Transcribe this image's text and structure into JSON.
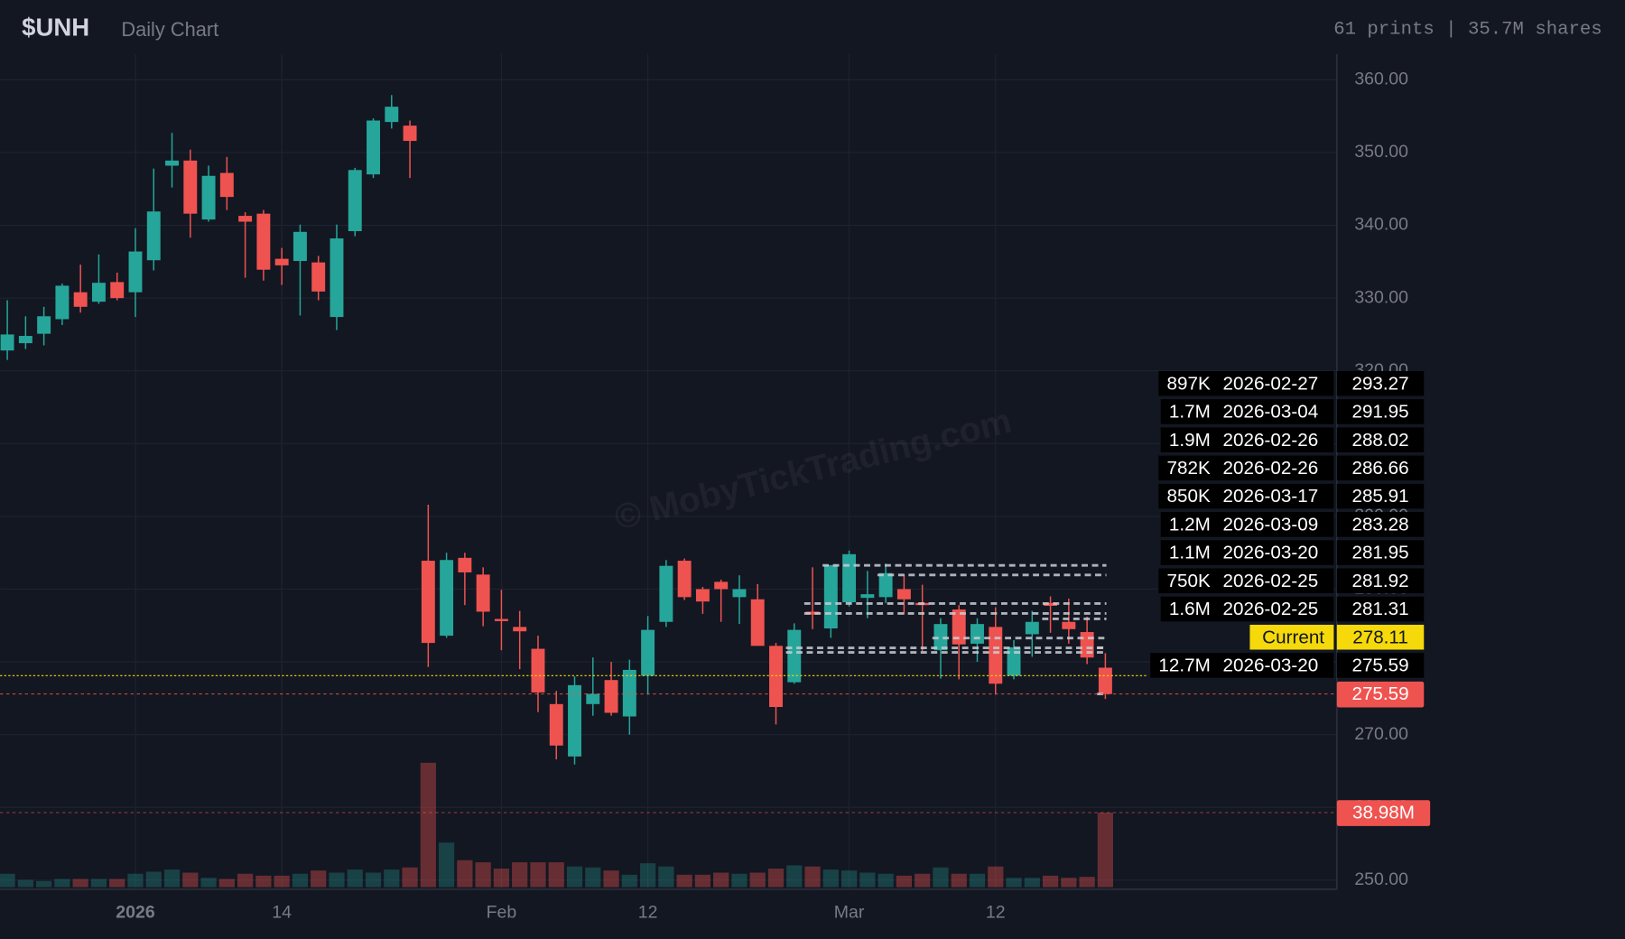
{
  "chart_data": {
    "type": "candlestick",
    "title": "$UNH",
    "subtitle": "Daily Chart",
    "summary": "61 prints | 35.7M shares",
    "watermark": "© MobyTickTrading.com",
    "categories": [
      null,
      null,
      null,
      null,
      null,
      null,
      null,
      "2026",
      null,
      null,
      null,
      null,
      null,
      null,
      null,
      "14",
      null,
      null,
      null,
      null,
      null,
      null,
      null,
      null,
      null,
      null,
      null,
      "Feb",
      null,
      null,
      null,
      null,
      null,
      null,
      null,
      "12",
      null,
      null,
      null,
      null,
      null,
      null,
      null,
      null,
      null,
      null,
      "Mar",
      null,
      null,
      null,
      null,
      null,
      null,
      null,
      "12",
      null,
      null,
      null,
      null,
      null,
      null
    ],
    "open": [
      322.8,
      323.8,
      325.1,
      327.1,
      330.8,
      329.5,
      332.2,
      330.8,
      335.2,
      348.2,
      348.9,
      340.8,
      347.2,
      341.3,
      341.6,
      335.4,
      335.1,
      334.9,
      327.4,
      339.2,
      347.0,
      354.2,
      353.7,
      293.9,
      283.6,
      294.3,
      292.0,
      285.9,
      284.8,
      281.8,
      274.2,
      267.0,
      274.2,
      277.5,
      272.5,
      278.1,
      285.5,
      293.9,
      290.0,
      291.0,
      288.9,
      288.6,
      282.2,
      277.2,
      286.9,
      284.6,
      288.2,
      288.8,
      288.9,
      290.0,
      288.1,
      281.6,
      287.2,
      282.5,
      284.8,
      278.1,
      283.8,
      288.1,
      285.5,
      284.1,
      279.2
    ],
    "high": [
      329.7,
      327.5,
      328.8,
      332.0,
      334.6,
      336.0,
      333.5,
      339.6,
      347.8,
      352.7,
      350.4,
      348.2,
      349.4,
      341.8,
      342.1,
      336.9,
      340.1,
      335.8,
      340.1,
      347.9,
      354.7,
      357.9,
      354.4,
      301.6,
      295.0,
      295.0,
      293.0,
      289.9,
      287.0,
      283.6,
      276.0,
      278.0,
      280.6,
      280.0,
      280.3,
      286.3,
      294.0,
      294.2,
      290.3,
      291.3,
      291.9,
      290.7,
      282.6,
      285.3,
      293.0,
      293.3,
      295.3,
      292.5,
      293.5,
      292.0,
      290.6,
      286.0,
      287.8,
      286.0,
      287.5,
      283.0,
      287.0,
      289.0,
      288.7,
      286.2,
      281.2
    ],
    "low": [
      321.5,
      323.0,
      323.5,
      326.3,
      328.0,
      329.2,
      329.7,
      327.4,
      333.8,
      345.2,
      338.3,
      340.5,
      342.1,
      332.8,
      332.4,
      331.8,
      327.6,
      329.7,
      325.6,
      338.5,
      346.5,
      353.3,
      346.5,
      279.3,
      283.3,
      287.8,
      284.9,
      281.6,
      279.0,
      273.1,
      266.6,
      265.9,
      272.6,
      272.6,
      270.0,
      275.5,
      284.8,
      288.5,
      286.6,
      285.5,
      285.2,
      282.2,
      271.4,
      277.0,
      284.5,
      283.3,
      287.6,
      286.0,
      288.1,
      286.5,
      281.5,
      277.7,
      277.6,
      280.0,
      275.5,
      277.6,
      280.7,
      284.0,
      282.5,
      279.7,
      274.9
    ],
    "close": [
      325.0,
      324.8,
      327.5,
      331.7,
      328.8,
      332.1,
      330.0,
      336.4,
      341.9,
      348.9,
      341.6,
      346.8,
      343.9,
      340.5,
      333.9,
      334.5,
      339.1,
      330.9,
      338.2,
      347.6,
      354.4,
      356.3,
      351.6,
      282.6,
      294.0,
      292.3,
      286.9,
      285.6,
      284.2,
      275.8,
      268.5,
      276.8,
      275.6,
      273.0,
      278.9,
      284.4,
      293.2,
      288.9,
      288.3,
      290.0,
      290.0,
      282.2,
      273.8,
      284.4,
      286.5,
      293.3,
      294.8,
      289.3,
      292.2,
      288.6,
      287.8,
      285.2,
      282.4,
      285.2,
      277.0,
      282.0,
      285.5,
      287.7,
      284.5,
      280.6,
      275.59
    ],
    "up_color": "#26a69a",
    "down_color": "#ef5350",
    "volume": {
      "values": [
        7.0,
        3.8,
        3.2,
        4.3,
        4.3,
        4.3,
        4.3,
        7.0,
        8.1,
        9.2,
        7.6,
        4.9,
        4.3,
        7.0,
        6.0,
        6.0,
        7.0,
        8.7,
        7.6,
        9.2,
        7.6,
        9.2,
        10.3,
        65.0,
        23.3,
        14.1,
        13.0,
        9.7,
        13.0,
        13.0,
        13.0,
        10.8,
        10.3,
        8.7,
        6.5,
        12.5,
        10.8,
        6.5,
        6.5,
        7.6,
        7.0,
        7.6,
        9.7,
        11.4,
        10.8,
        9.2,
        8.7,
        7.6,
        7.0,
        6.0,
        7.0,
        10.3,
        7.0,
        7.0,
        10.8,
        4.9,
        4.9,
        6.0,
        4.9,
        5.4,
        38.98
      ],
      "last_label": "38.98M"
    },
    "ylim": [
      248.75,
      363.56
    ],
    "yticks": [
      {
        "value": 250,
        "label": "250.00"
      },
      {
        "value": 260,
        "label": "260.00"
      },
      {
        "value": 270,
        "label": "270.00"
      },
      {
        "value": 280,
        "label": "280.00"
      },
      {
        "value": 290,
        "label": "290.00"
      },
      {
        "value": 300,
        "label": "300.00"
      },
      {
        "value": 310,
        "label": "310.00"
      },
      {
        "value": 320,
        "label": "320.00"
      },
      {
        "value": 330,
        "label": "330.00"
      },
      {
        "value": 340,
        "label": "340.00"
      },
      {
        "value": 350,
        "label": "350.00"
      },
      {
        "value": 360,
        "label": "360.00"
      }
    ],
    "grid": true,
    "current": {
      "label": "Current",
      "value": 278.11,
      "color": "#f5d90a"
    },
    "print_color": "#c9ccd4",
    "prints": [
      {
        "size": "897K",
        "date": "2026-02-27",
        "price": 293.27
      },
      {
        "size": "1.7M",
        "date": "2026-03-04",
        "price": 291.95
      },
      {
        "size": "1.9M",
        "date": "2026-02-26",
        "price": 288.02
      },
      {
        "size": "782K",
        "date": "2026-02-26",
        "price": 286.66
      },
      {
        "size": "850K",
        "date": "2026-03-17",
        "price": 285.91
      },
      {
        "size": "1.2M",
        "date": "2026-03-09",
        "price": 283.28
      },
      {
        "size": "1.1M",
        "date": "2026-03-20",
        "price": 281.95
      },
      {
        "size": "750K",
        "date": "2026-02-25",
        "price": 281.92
      },
      {
        "size": "1.6M",
        "date": "2026-02-25",
        "price": 281.31
      },
      {
        "size": "12.7M",
        "date": "2026-03-20",
        "price": 275.59
      }
    ]
  }
}
